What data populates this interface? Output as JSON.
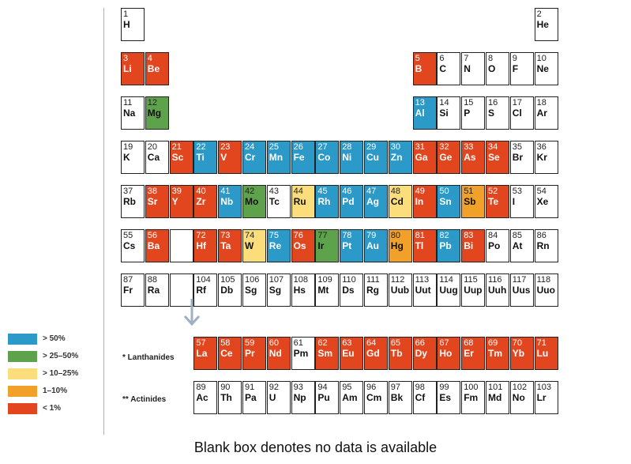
{
  "colors": {
    "gt50": "#2c9ac9",
    "gt25_50": "#5fa24c",
    "gt10_25": "#fbdd7c",
    "r1_10": "#f1a12a",
    "lt1": "#e2461f",
    "none": "#ffffff"
  },
  "legend": [
    {
      "key": "gt50",
      "label": "> 50%"
    },
    {
      "key": "gt25_50",
      "label": "> 25–50%"
    },
    {
      "key": "gt10_25",
      "label": "> 10–25%"
    },
    {
      "key": "r1_10",
      "label": "1–10%"
    },
    {
      "key": "lt1",
      "label": "< 1%"
    }
  ],
  "series_labels": {
    "lanthanides": "* Lanthanides",
    "actinides": "** Actinides"
  },
  "caption": "Blank box denotes no data is available",
  "elements": [
    {
      "n": "1",
      "s": "H",
      "r": 1,
      "c": 1,
      "k": "none"
    },
    {
      "n": "2",
      "s": "He",
      "r": 1,
      "c": 18,
      "k": "none"
    },
    {
      "n": "3",
      "s": "Li",
      "r": 2,
      "c": 1,
      "k": "lt1"
    },
    {
      "n": "4",
      "s": "Be",
      "r": 2,
      "c": 2,
      "k": "lt1"
    },
    {
      "n": "5",
      "s": "B",
      "r": 2,
      "c": 13,
      "k": "lt1"
    },
    {
      "n": "6",
      "s": "C",
      "r": 2,
      "c": 14,
      "k": "none"
    },
    {
      "n": "7",
      "s": "N",
      "r": 2,
      "c": 15,
      "k": "none"
    },
    {
      "n": "8",
      "s": "O",
      "r": 2,
      "c": 16,
      "k": "none"
    },
    {
      "n": "9",
      "s": "F",
      "r": 2,
      "c": 17,
      "k": "none"
    },
    {
      "n": "10",
      "s": "Ne",
      "r": 2,
      "c": 18,
      "k": "none"
    },
    {
      "n": "11",
      "s": "Na",
      "r": 3,
      "c": 1,
      "k": "none"
    },
    {
      "n": "12",
      "s": "Mg",
      "r": 3,
      "c": 2,
      "k": "gt25_50"
    },
    {
      "n": "13",
      "s": "Al",
      "r": 3,
      "c": 13,
      "k": "gt50"
    },
    {
      "n": "14",
      "s": "Si",
      "r": 3,
      "c": 14,
      "k": "none"
    },
    {
      "n": "15",
      "s": "P",
      "r": 3,
      "c": 15,
      "k": "none"
    },
    {
      "n": "16",
      "s": "S",
      "r": 3,
      "c": 16,
      "k": "none"
    },
    {
      "n": "17",
      "s": "Cl",
      "r": 3,
      "c": 17,
      "k": "none"
    },
    {
      "n": "18",
      "s": "Ar",
      "r": 3,
      "c": 18,
      "k": "none"
    },
    {
      "n": "19",
      "s": "K",
      "r": 4,
      "c": 1,
      "k": "none"
    },
    {
      "n": "20",
      "s": "Ca",
      "r": 4,
      "c": 2,
      "k": "none"
    },
    {
      "n": "21",
      "s": "Sc",
      "r": 4,
      "c": 3,
      "k": "lt1"
    },
    {
      "n": "22",
      "s": "Ti",
      "r": 4,
      "c": 4,
      "k": "gt50"
    },
    {
      "n": "23",
      "s": "V",
      "r": 4,
      "c": 5,
      "k": "lt1"
    },
    {
      "n": "24",
      "s": "Cr",
      "r": 4,
      "c": 6,
      "k": "gt50"
    },
    {
      "n": "25",
      "s": "Mn",
      "r": 4,
      "c": 7,
      "k": "gt50"
    },
    {
      "n": "26",
      "s": "Fe",
      "r": 4,
      "c": 8,
      "k": "gt50"
    },
    {
      "n": "27",
      "s": "Co",
      "r": 4,
      "c": 9,
      "k": "gt50"
    },
    {
      "n": "28",
      "s": "Ni",
      "r": 4,
      "c": 10,
      "k": "gt50"
    },
    {
      "n": "29",
      "s": "Cu",
      "r": 4,
      "c": 11,
      "k": "gt50"
    },
    {
      "n": "30",
      "s": "Zn",
      "r": 4,
      "c": 12,
      "k": "gt50"
    },
    {
      "n": "31",
      "s": "Ga",
      "r": 4,
      "c": 13,
      "k": "lt1"
    },
    {
      "n": "32",
      "s": "Ge",
      "r": 4,
      "c": 14,
      "k": "lt1"
    },
    {
      "n": "33",
      "s": "As",
      "r": 4,
      "c": 15,
      "k": "lt1"
    },
    {
      "n": "34",
      "s": "Se",
      "r": 4,
      "c": 16,
      "k": "lt1"
    },
    {
      "n": "35",
      "s": "Br",
      "r": 4,
      "c": 17,
      "k": "none"
    },
    {
      "n": "36",
      "s": "Kr",
      "r": 4,
      "c": 18,
      "k": "none"
    },
    {
      "n": "37",
      "s": "Rb",
      "r": 5,
      "c": 1,
      "k": "none"
    },
    {
      "n": "38",
      "s": "Sr",
      "r": 5,
      "c": 2,
      "k": "lt1"
    },
    {
      "n": "39",
      "s": "Y",
      "r": 5,
      "c": 3,
      "k": "lt1"
    },
    {
      "n": "40",
      "s": "Zr",
      "r": 5,
      "c": 4,
      "k": "lt1"
    },
    {
      "n": "41",
      "s": "Nb",
      "r": 5,
      "c": 5,
      "k": "gt50"
    },
    {
      "n": "42",
      "s": "Mo",
      "r": 5,
      "c": 6,
      "k": "gt25_50"
    },
    {
      "n": "43",
      "s": "Tc",
      "r": 5,
      "c": 7,
      "k": "none"
    },
    {
      "n": "44",
      "s": "Ru",
      "r": 5,
      "c": 8,
      "k": "gt10_25"
    },
    {
      "n": "45",
      "s": "Rh",
      "r": 5,
      "c": 9,
      "k": "gt50"
    },
    {
      "n": "46",
      "s": "Pd",
      "r": 5,
      "c": 10,
      "k": "gt50"
    },
    {
      "n": "47",
      "s": "Ag",
      "r": 5,
      "c": 11,
      "k": "gt50"
    },
    {
      "n": "48",
      "s": "Cd",
      "r": 5,
      "c": 12,
      "k": "gt10_25"
    },
    {
      "n": "49",
      "s": "In",
      "r": 5,
      "c": 13,
      "k": "lt1"
    },
    {
      "n": "50",
      "s": "Sn",
      "r": 5,
      "c": 14,
      "k": "gt50"
    },
    {
      "n": "51",
      "s": "Sb",
      "r": 5,
      "c": 15,
      "k": "r1_10"
    },
    {
      "n": "52",
      "s": "Te",
      "r": 5,
      "c": 16,
      "k": "lt1"
    },
    {
      "n": "53",
      "s": "I",
      "r": 5,
      "c": 17,
      "k": "none"
    },
    {
      "n": "54",
      "s": "Xe",
      "r": 5,
      "c": 18,
      "k": "none"
    },
    {
      "n": "55",
      "s": "Cs",
      "r": 6,
      "c": 1,
      "k": "none"
    },
    {
      "n": "56",
      "s": "Ba",
      "r": 6,
      "c": 2,
      "k": "lt1"
    },
    {
      "n": "",
      "s": "*",
      "r": 6,
      "c": 3,
      "k": "none",
      "ph": true
    },
    {
      "n": "72",
      "s": "Hf",
      "r": 6,
      "c": 4,
      "k": "lt1"
    },
    {
      "n": "73",
      "s": "Ta",
      "r": 6,
      "c": 5,
      "k": "lt1"
    },
    {
      "n": "74",
      "s": "W",
      "r": 6,
      "c": 6,
      "k": "gt10_25"
    },
    {
      "n": "75",
      "s": "Re",
      "r": 6,
      "c": 7,
      "k": "gt50"
    },
    {
      "n": "76",
      "s": "Os",
      "r": 6,
      "c": 8,
      "k": "lt1"
    },
    {
      "n": "77",
      "s": "Ir",
      "r": 6,
      "c": 9,
      "k": "gt25_50"
    },
    {
      "n": "78",
      "s": "Pt",
      "r": 6,
      "c": 10,
      "k": "gt50"
    },
    {
      "n": "79",
      "s": "Au",
      "r": 6,
      "c": 11,
      "k": "gt50"
    },
    {
      "n": "80",
      "s": "Hg",
      "r": 6,
      "c": 12,
      "k": "r1_10"
    },
    {
      "n": "81",
      "s": "Tl",
      "r": 6,
      "c": 13,
      "k": "lt1"
    },
    {
      "n": "82",
      "s": "Pb",
      "r": 6,
      "c": 14,
      "k": "gt50"
    },
    {
      "n": "83",
      "s": "Bi",
      "r": 6,
      "c": 15,
      "k": "lt1"
    },
    {
      "n": "84",
      "s": "Po",
      "r": 6,
      "c": 16,
      "k": "none"
    },
    {
      "n": "85",
      "s": "At",
      "r": 6,
      "c": 17,
      "k": "none"
    },
    {
      "n": "86",
      "s": "Rn",
      "r": 6,
      "c": 18,
      "k": "none"
    },
    {
      "n": "87",
      "s": "Fr",
      "r": 7,
      "c": 1,
      "k": "none"
    },
    {
      "n": "88",
      "s": "Ra",
      "r": 7,
      "c": 2,
      "k": "none"
    },
    {
      "n": "",
      "s": "**",
      "r": 7,
      "c": 3,
      "k": "none",
      "ph": true
    },
    {
      "n": "104",
      "s": "Rf",
      "r": 7,
      "c": 4,
      "k": "none"
    },
    {
      "n": "105",
      "s": "Db",
      "r": 7,
      "c": 5,
      "k": "none"
    },
    {
      "n": "106",
      "s": "Sg",
      "r": 7,
      "c": 6,
      "k": "none"
    },
    {
      "n": "107",
      "s": "Sg",
      "r": 7,
      "c": 7,
      "k": "none"
    },
    {
      "n": "108",
      "s": "Hs",
      "r": 7,
      "c": 8,
      "k": "none"
    },
    {
      "n": "109",
      "s": "Mt",
      "r": 7,
      "c": 9,
      "k": "none"
    },
    {
      "n": "110",
      "s": "Ds",
      "r": 7,
      "c": 10,
      "k": "none"
    },
    {
      "n": "111",
      "s": "Rg",
      "r": 7,
      "c": 11,
      "k": "none"
    },
    {
      "n": "112",
      "s": "Uub",
      "r": 7,
      "c": 12,
      "k": "none"
    },
    {
      "n": "113",
      "s": "Uut",
      "r": 7,
      "c": 13,
      "k": "none"
    },
    {
      "n": "114",
      "s": "Uug",
      "r": 7,
      "c": 14,
      "k": "none"
    },
    {
      "n": "115",
      "s": "Uup",
      "r": 7,
      "c": 15,
      "k": "none"
    },
    {
      "n": "116",
      "s": "Uuh",
      "r": 7,
      "c": 16,
      "k": "none"
    },
    {
      "n": "117",
      "s": "Uus",
      "r": 7,
      "c": 17,
      "k": "none"
    },
    {
      "n": "118",
      "s": "Uuo",
      "r": 7,
      "c": 18,
      "k": "none"
    },
    {
      "n": "57",
      "s": "La",
      "r": 9,
      "c": 4,
      "k": "lt1"
    },
    {
      "n": "58",
      "s": "Ce",
      "r": 9,
      "c": 5,
      "k": "lt1"
    },
    {
      "n": "59",
      "s": "Pr",
      "r": 9,
      "c": 6,
      "k": "lt1"
    },
    {
      "n": "60",
      "s": "Nd",
      "r": 9,
      "c": 7,
      "k": "lt1"
    },
    {
      "n": "61",
      "s": "Pm",
      "r": 9,
      "c": 8,
      "k": "none"
    },
    {
      "n": "62",
      "s": "Sm",
      "r": 9,
      "c": 9,
      "k": "lt1"
    },
    {
      "n": "63",
      "s": "Eu",
      "r": 9,
      "c": 10,
      "k": "lt1"
    },
    {
      "n": "64",
      "s": "Gd",
      "r": 9,
      "c": 11,
      "k": "lt1"
    },
    {
      "n": "65",
      "s": "Tb",
      "r": 9,
      "c": 12,
      "k": "lt1"
    },
    {
      "n": "66",
      "s": "Dy",
      "r": 9,
      "c": 13,
      "k": "lt1"
    },
    {
      "n": "67",
      "s": "Ho",
      "r": 9,
      "c": 14,
      "k": "lt1"
    },
    {
      "n": "68",
      "s": "Er",
      "r": 9,
      "c": 15,
      "k": "lt1"
    },
    {
      "n": "69",
      "s": "Tm",
      "r": 9,
      "c": 16,
      "k": "lt1"
    },
    {
      "n": "70",
      "s": "Yb",
      "r": 9,
      "c": 17,
      "k": "lt1"
    },
    {
      "n": "71",
      "s": "Lu",
      "r": 9,
      "c": 18,
      "k": "lt1"
    },
    {
      "n": "89",
      "s": "Ac",
      "r": 10,
      "c": 4,
      "k": "none"
    },
    {
      "n": "90",
      "s": "Th",
      "r": 10,
      "c": 5,
      "k": "none"
    },
    {
      "n": "91",
      "s": "Pa",
      "r": 10,
      "c": 6,
      "k": "none"
    },
    {
      "n": "92",
      "s": "U",
      "r": 10,
      "c": 7,
      "k": "none"
    },
    {
      "n": "93",
      "s": "Np",
      "r": 10,
      "c": 8,
      "k": "none"
    },
    {
      "n": "94",
      "s": "Pu",
      "r": 10,
      "c": 9,
      "k": "none"
    },
    {
      "n": "95",
      "s": "Am",
      "r": 10,
      "c": 10,
      "k": "none"
    },
    {
      "n": "96",
      "s": "Cm",
      "r": 10,
      "c": 11,
      "k": "none"
    },
    {
      "n": "97",
      "s": "Bk",
      "r": 10,
      "c": 12,
      "k": "none"
    },
    {
      "n": "98",
      "s": "Cf",
      "r": 10,
      "c": 13,
      "k": "none"
    },
    {
      "n": "99",
      "s": "Es",
      "r": 10,
      "c": 14,
      "k": "none"
    },
    {
      "n": "100",
      "s": "Fm",
      "r": 10,
      "c": 15,
      "k": "none"
    },
    {
      "n": "101",
      "s": "Md",
      "r": 10,
      "c": 16,
      "k": "none"
    },
    {
      "n": "102",
      "s": "No",
      "r": 10,
      "c": 17,
      "k": "none"
    },
    {
      "n": "103",
      "s": "Lr",
      "r": 10,
      "c": 18,
      "k": "none"
    }
  ]
}
